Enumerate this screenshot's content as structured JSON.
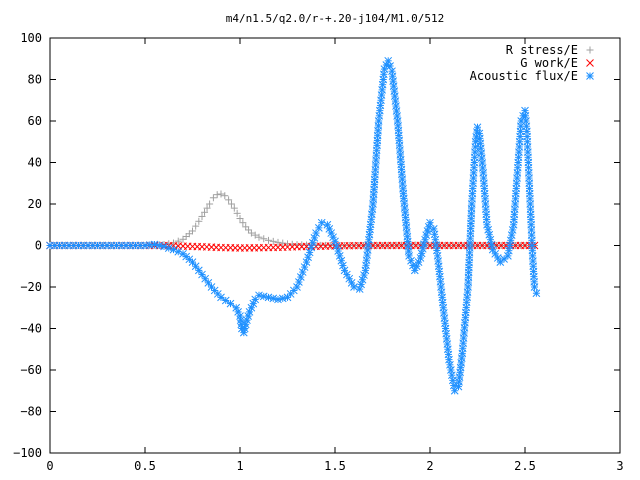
{
  "chart_data": {
    "type": "scatter",
    "title": "m4/n1.5/q2.0/r-+.20-j104/M1.0/512",
    "xlabel": "",
    "ylabel": "",
    "xlim": [
      0,
      3
    ],
    "ylim": [
      -100,
      100
    ],
    "xticks": [
      "0",
      "0.5",
      "1",
      "1.5",
      "2",
      "2.5",
      "3"
    ],
    "yticks": [
      "100",
      "80",
      "60",
      "40",
      "20",
      "0",
      "−20",
      "−40",
      "−60",
      "−80",
      "−100"
    ],
    "legend_position": "top-right",
    "series": [
      {
        "name": "R stress/E",
        "marker": "+",
        "color": "#a0a0a0",
        "points": [
          [
            0.0,
            0
          ],
          [
            0.1,
            0
          ],
          [
            0.2,
            0
          ],
          [
            0.3,
            0
          ],
          [
            0.4,
            0
          ],
          [
            0.5,
            0
          ],
          [
            0.55,
            0.2
          ],
          [
            0.6,
            0.5
          ],
          [
            0.65,
            1.2
          ],
          [
            0.7,
            3
          ],
          [
            0.75,
            7
          ],
          [
            0.8,
            14
          ],
          [
            0.84,
            20
          ],
          [
            0.86,
            23
          ],
          [
            0.88,
            24.5
          ],
          [
            0.9,
            24.8
          ],
          [
            0.92,
            24
          ],
          [
            0.94,
            22
          ],
          [
            0.97,
            18
          ],
          [
            1.0,
            13
          ],
          [
            1.03,
            9
          ],
          [
            1.06,
            6
          ],
          [
            1.1,
            4
          ],
          [
            1.15,
            2.5
          ],
          [
            1.2,
            1.5
          ],
          [
            1.25,
            0.8
          ],
          [
            1.3,
            0.4
          ],
          [
            1.4,
            0.1
          ],
          [
            1.5,
            0
          ],
          [
            1.6,
            0
          ],
          [
            1.7,
            0
          ],
          [
            1.8,
            0
          ],
          [
            1.9,
            0.3
          ],
          [
            2.0,
            0
          ],
          [
            2.1,
            0
          ],
          [
            2.2,
            0
          ],
          [
            2.3,
            0
          ],
          [
            2.4,
            0
          ],
          [
            2.5,
            0
          ],
          [
            2.55,
            0
          ]
        ]
      },
      {
        "name": "G work/E",
        "marker": "x",
        "color": "#ff0000",
        "points": [
          [
            0.0,
            0
          ],
          [
            0.1,
            0
          ],
          [
            0.2,
            0
          ],
          [
            0.3,
            0
          ],
          [
            0.4,
            0
          ],
          [
            0.5,
            0
          ],
          [
            0.6,
            0
          ],
          [
            0.7,
            -0.3
          ],
          [
            0.8,
            -0.6
          ],
          [
            0.9,
            -1
          ],
          [
            1.0,
            -1.2
          ],
          [
            1.1,
            -1.1
          ],
          [
            1.2,
            -0.9
          ],
          [
            1.3,
            -0.6
          ],
          [
            1.4,
            -0.4
          ],
          [
            1.5,
            -0.2
          ],
          [
            1.6,
            -0.1
          ],
          [
            1.7,
            0
          ],
          [
            1.8,
            0
          ],
          [
            1.9,
            0
          ],
          [
            2.0,
            0
          ],
          [
            2.1,
            0
          ],
          [
            2.2,
            0
          ],
          [
            2.3,
            0
          ],
          [
            2.4,
            0
          ],
          [
            2.5,
            0
          ],
          [
            2.55,
            0
          ]
        ]
      },
      {
        "name": "Acoustic flux/E",
        "marker": "*",
        "color": "#1e90ff",
        "points": [
          [
            0.0,
            0
          ],
          [
            0.1,
            0
          ],
          [
            0.2,
            0
          ],
          [
            0.3,
            0
          ],
          [
            0.4,
            0
          ],
          [
            0.5,
            0
          ],
          [
            0.55,
            0.5
          ],
          [
            0.6,
            -0.5
          ],
          [
            0.65,
            -2
          ],
          [
            0.7,
            -4
          ],
          [
            0.75,
            -8
          ],
          [
            0.8,
            -14
          ],
          [
            0.85,
            -20
          ],
          [
            0.9,
            -25
          ],
          [
            0.95,
            -28
          ],
          [
            0.98,
            -30
          ],
          [
            1.0,
            -34
          ],
          [
            1.01,
            -40
          ],
          [
            1.02,
            -42
          ],
          [
            1.03,
            -38
          ],
          [
            1.05,
            -32
          ],
          [
            1.08,
            -26
          ],
          [
            1.1,
            -24
          ],
          [
            1.15,
            -25
          ],
          [
            1.2,
            -26
          ],
          [
            1.25,
            -25
          ],
          [
            1.3,
            -20
          ],
          [
            1.35,
            -8
          ],
          [
            1.4,
            6
          ],
          [
            1.43,
            11
          ],
          [
            1.46,
            10
          ],
          [
            1.5,
            2
          ],
          [
            1.55,
            -12
          ],
          [
            1.6,
            -20
          ],
          [
            1.63,
            -21
          ],
          [
            1.66,
            -12
          ],
          [
            1.7,
            20
          ],
          [
            1.73,
            60
          ],
          [
            1.76,
            85
          ],
          [
            1.78,
            89
          ],
          [
            1.8,
            84
          ],
          [
            1.83,
            60
          ],
          [
            1.86,
            25
          ],
          [
            1.89,
            -5
          ],
          [
            1.92,
            -12
          ],
          [
            1.95,
            -6
          ],
          [
            1.98,
            5
          ],
          [
            2.0,
            11
          ],
          [
            2.02,
            8
          ],
          [
            2.04,
            -5
          ],
          [
            2.07,
            -30
          ],
          [
            2.1,
            -55
          ],
          [
            2.13,
            -70
          ],
          [
            2.15,
            -68
          ],
          [
            2.17,
            -52
          ],
          [
            2.2,
            -20
          ],
          [
            2.22,
            20
          ],
          [
            2.24,
            50
          ],
          [
            2.25,
            57
          ],
          [
            2.26,
            54
          ],
          [
            2.28,
            35
          ],
          [
            2.3,
            10
          ],
          [
            2.33,
            -2
          ],
          [
            2.37,
            -8
          ],
          [
            2.41,
            -5
          ],
          [
            2.44,
            10
          ],
          [
            2.46,
            35
          ],
          [
            2.48,
            60
          ],
          [
            2.5,
            65
          ],
          [
            2.51,
            55
          ],
          [
            2.52,
            35
          ],
          [
            2.53,
            15
          ],
          [
            2.54,
            -5
          ],
          [
            2.55,
            -20
          ],
          [
            2.56,
            -23
          ]
        ]
      }
    ]
  }
}
